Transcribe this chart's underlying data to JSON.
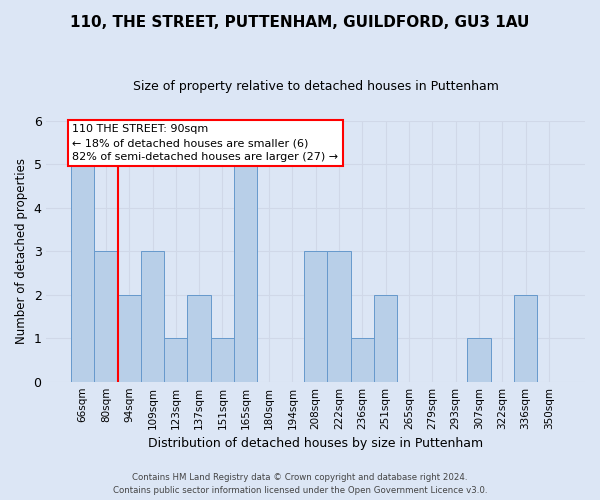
{
  "title": "110, THE STREET, PUTTENHAM, GUILDFORD, GU3 1AU",
  "subtitle": "Size of property relative to detached houses in Puttenham",
  "xlabel": "Distribution of detached houses by size in Puttenham",
  "ylabel": "Number of detached properties",
  "categories": [
    "66sqm",
    "80sqm",
    "94sqm",
    "109sqm",
    "123sqm",
    "137sqm",
    "151sqm",
    "165sqm",
    "180sqm",
    "194sqm",
    "208sqm",
    "222sqm",
    "236sqm",
    "251sqm",
    "265sqm",
    "279sqm",
    "293sqm",
    "307sqm",
    "322sqm",
    "336sqm",
    "350sqm"
  ],
  "values": [
    5,
    3,
    2,
    3,
    1,
    2,
    1,
    5,
    0,
    0,
    3,
    3,
    1,
    2,
    0,
    0,
    0,
    1,
    0,
    2,
    0
  ],
  "bar_color": "#b8cfe8",
  "bar_edge_color": "#6699cc",
  "grid_color": "#d0d8e8",
  "background_color": "#dce6f5",
  "red_line_x": 1.5,
  "annotation_line1": "110 THE STREET: 90sqm",
  "annotation_line2": "← 18% of detached houses are smaller (6)",
  "annotation_line3": "82% of semi-detached houses are larger (27) →",
  "annotation_box_color": "white",
  "annotation_box_edge_color": "red",
  "footer_line1": "Contains HM Land Registry data © Crown copyright and database right 2024.",
  "footer_line2": "Contains public sector information licensed under the Open Government Licence v3.0.",
  "ylim": [
    0,
    6
  ],
  "yticks": [
    0,
    1,
    2,
    3,
    4,
    5,
    6
  ],
  "title_fontsize": 11,
  "subtitle_fontsize": 9
}
